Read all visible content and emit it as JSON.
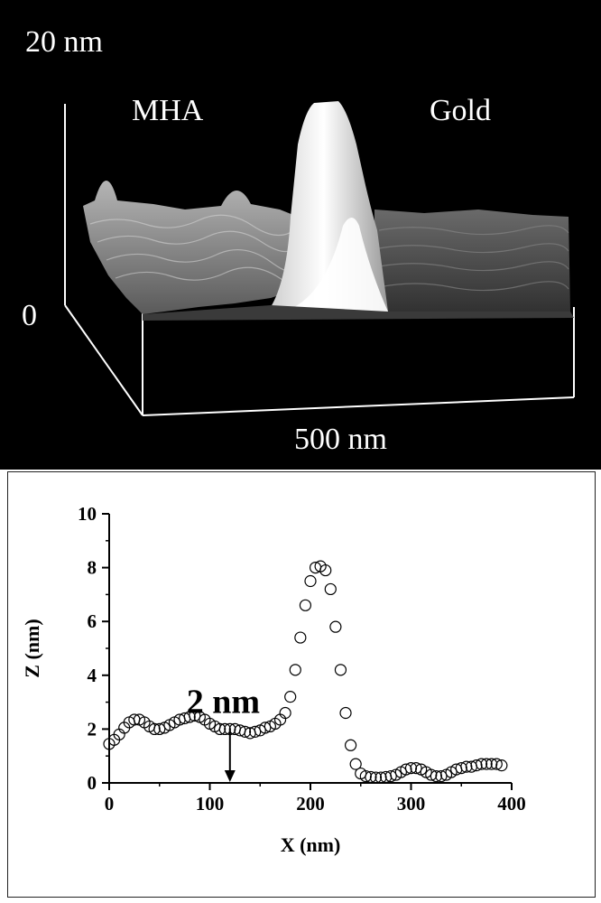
{
  "afm": {
    "top_height_label": "20 nm",
    "left_label": "MHA",
    "right_label": "Gold",
    "zero_label": "0",
    "scale_label": "500 nm"
  },
  "chart_data": {
    "type": "scatter",
    "title": "",
    "xlabel": "X (nm)",
    "ylabel": "Z (nm)",
    "xlim": [
      0,
      400
    ],
    "ylim": [
      0,
      10
    ],
    "xticks": [
      "0",
      "100",
      "200",
      "300",
      "400"
    ],
    "yticks": [
      "0",
      "2",
      "4",
      "6",
      "8",
      "10"
    ],
    "marker": "open-circle",
    "annotation": {
      "text": "2 nm",
      "x": 120,
      "y_top": 2.0,
      "y_bottom": 0
    },
    "series": [
      {
        "x": [
          0,
          5,
          10,
          15,
          20,
          25,
          30,
          35,
          40,
          45,
          50,
          55,
          60,
          65,
          70,
          75,
          80,
          85,
          90,
          95,
          100,
          105,
          110,
          115,
          120,
          125,
          130,
          135,
          140,
          145,
          150,
          155,
          160,
          165,
          170,
          175,
          180,
          185,
          190,
          195,
          200,
          205,
          210,
          215,
          220,
          225,
          230,
          235,
          240,
          245,
          250,
          255,
          260,
          265,
          270,
          275,
          280,
          285,
          290,
          295,
          300,
          305,
          310,
          315,
          320,
          325,
          330,
          335,
          340,
          345,
          350,
          355,
          360,
          365,
          370,
          375,
          380,
          385,
          390
        ],
        "y": [
          1.45,
          1.6,
          1.8,
          2.05,
          2.25,
          2.35,
          2.35,
          2.25,
          2.1,
          2.0,
          2.0,
          2.05,
          2.15,
          2.25,
          2.35,
          2.4,
          2.45,
          2.5,
          2.45,
          2.35,
          2.2,
          2.1,
          2.0,
          2.0,
          2.0,
          2.0,
          1.95,
          1.9,
          1.85,
          1.9,
          1.95,
          2.05,
          2.1,
          2.2,
          2.35,
          2.6,
          3.2,
          4.2,
          5.4,
          6.6,
          7.5,
          8.0,
          8.05,
          7.9,
          7.2,
          5.8,
          4.2,
          2.6,
          1.4,
          0.7,
          0.35,
          0.25,
          0.22,
          0.2,
          0.2,
          0.22,
          0.25,
          0.3,
          0.4,
          0.5,
          0.55,
          0.55,
          0.5,
          0.4,
          0.3,
          0.25,
          0.25,
          0.3,
          0.4,
          0.5,
          0.55,
          0.6,
          0.6,
          0.65,
          0.7,
          0.7,
          0.7,
          0.7,
          0.65
        ]
      }
    ]
  }
}
